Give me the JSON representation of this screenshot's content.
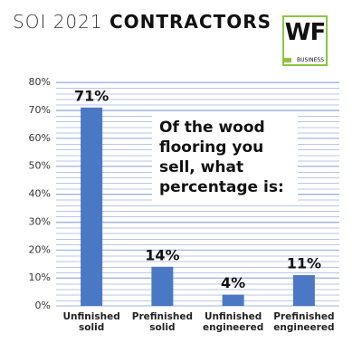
{
  "chart_data": {
    "type": "bar",
    "title": "SOI 2021",
    "title_bold": "CONTRACTORS",
    "logo": {
      "text": "WF",
      "subtext": "BUSINESS"
    },
    "annotation": "Of the wood flooring you sell, what percentage is:",
    "categories": [
      "Unfinished solid",
      "Prefinished solid",
      "Unfinished engineered",
      "Prefinished engineered"
    ],
    "values": [
      71,
      14,
      4,
      11
    ],
    "value_labels": [
      "71%",
      "14%",
      "4%",
      "11%"
    ],
    "color": "#4a78c5",
    "ylim": [
      0,
      80
    ],
    "yticks": [
      {
        "value": 0,
        "label": "0%"
      },
      {
        "value": 10,
        "label": "10%"
      },
      {
        "value": 20,
        "label": "20%"
      },
      {
        "value": 30,
        "label": "30%"
      },
      {
        "value": 40,
        "label": "40%"
      },
      {
        "value": 50,
        "label": "50%"
      },
      {
        "value": 60,
        "label": "60%"
      },
      {
        "value": 70,
        "label": "70%"
      },
      {
        "value": 80,
        "label": "80%"
      }
    ],
    "grid": true
  }
}
